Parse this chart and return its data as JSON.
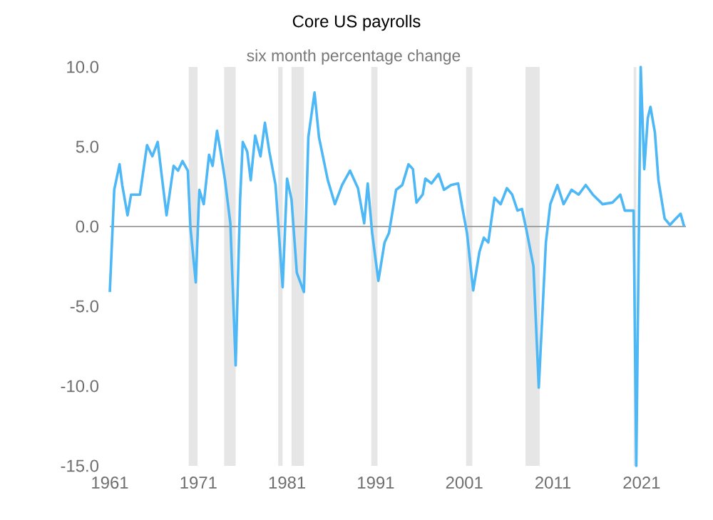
{
  "chart_data": {
    "type": "line",
    "title": "Core US payrolls",
    "subtitle": "six month percentage change",
    "xlim": [
      1961,
      2026
    ],
    "ylim": [
      -15,
      10
    ],
    "xticks": [
      1961,
      1971,
      1981,
      1991,
      2001,
      2011,
      2021
    ],
    "yticks": [
      {
        "value": -15,
        "label": "-15.0"
      },
      {
        "value": -10,
        "label": "-10.0"
      },
      {
        "value": -5,
        "label": "-5.0"
      },
      {
        "value": 0,
        "label": "0.0"
      },
      {
        "value": 5,
        "label": "5.0"
      },
      {
        "value": 10,
        "label": "10.0"
      }
    ],
    "ref_lines": [
      {
        "axis": "y",
        "value": 0,
        "color": "#888888"
      }
    ],
    "bands": [
      {
        "axis": "x",
        "from": 1969.9,
        "to": 1970.9,
        "color": "#e6e6e6"
      },
      {
        "axis": "x",
        "from": 1973.9,
        "to": 1975.2,
        "color": "#e6e6e6"
      },
      {
        "axis": "x",
        "from": 1980.0,
        "to": 1980.5,
        "color": "#e6e6e6"
      },
      {
        "axis": "x",
        "from": 1981.5,
        "to": 1982.9,
        "color": "#e6e6e6"
      },
      {
        "axis": "x",
        "from": 1990.5,
        "to": 1991.2,
        "color": "#e6e6e6"
      },
      {
        "axis": "x",
        "from": 2001.2,
        "to": 2001.9,
        "color": "#e6e6e6"
      },
      {
        "axis": "x",
        "from": 2007.9,
        "to": 2009.5,
        "color": "#e6e6e6"
      },
      {
        "axis": "x",
        "from": 2020.1,
        "to": 2020.4,
        "color": "#e6e6e6"
      }
    ],
    "series": [
      {
        "color": "#4db8f5",
        "x": [
          1961.0,
          1961.5,
          1962.1,
          1962.4,
          1963.0,
          1963.4,
          1964.4,
          1965.2,
          1965.8,
          1966.4,
          1967.4,
          1968.2,
          1968.7,
          1969.2,
          1969.8,
          1970.1,
          1970.7,
          1971.1,
          1971.6,
          1972.2,
          1972.6,
          1973.1,
          1973.5,
          1974.0,
          1974.6,
          1975.2,
          1975.7,
          1976.0,
          1976.5,
          1976.9,
          1977.4,
          1978.0,
          1978.5,
          1979.0,
          1979.7,
          1980.5,
          1981.0,
          1981.5,
          1982.1,
          1982.9,
          1983.4,
          1984.1,
          1984.6,
          1985.6,
          1986.4,
          1987.2,
          1988.1,
          1989.0,
          1989.7,
          1990.1,
          1990.6,
          1991.3,
          1992.0,
          1992.5,
          1993.3,
          1994.0,
          1994.7,
          1995.2,
          1995.6,
          1996.3,
          1996.6,
          1997.3,
          1998.1,
          1998.7,
          1999.5,
          2000.3,
          2000.8,
          2001.3,
          2002.0,
          2002.7,
          2003.2,
          2003.7,
          2004.4,
          2005.1,
          2005.8,
          2006.4,
          2007.0,
          2007.5,
          2008.0,
          2008.8,
          2009.4,
          2010.2,
          2010.7,
          2011.5,
          2012.2,
          2013.1,
          2013.9,
          2014.7,
          2015.5,
          2016.6,
          2017.7,
          2018.6,
          2019.1,
          2020.1,
          2020.4,
          2020.9,
          2021.3,
          2021.7,
          2022.0,
          2022.5,
          2022.9,
          2023.6,
          2024.2,
          2024.7,
          2025.4,
          2025.8
        ],
        "values": [
          -4.1,
          2.3,
          3.9,
          2.6,
          0.7,
          2.0,
          2.0,
          5.1,
          4.4,
          5.3,
          0.7,
          3.8,
          3.5,
          4.1,
          3.5,
          -0.1,
          -3.5,
          2.3,
          1.4,
          4.5,
          3.8,
          6.0,
          4.7,
          2.9,
          0.2,
          -8.7,
          1.7,
          5.3,
          4.7,
          2.9,
          5.7,
          4.4,
          6.5,
          4.7,
          2.6,
          -3.8,
          3.0,
          1.7,
          -2.9,
          -4.1,
          5.6,
          8.4,
          5.6,
          2.9,
          1.4,
          2.6,
          3.5,
          2.4,
          0.2,
          2.7,
          -0.4,
          -3.4,
          -1.0,
          -0.4,
          2.3,
          2.6,
          3.9,
          3.6,
          1.5,
          2.0,
          3.0,
          2.7,
          3.3,
          2.3,
          2.6,
          2.7,
          1.1,
          -0.4,
          -4.0,
          -1.6,
          -0.7,
          -1.0,
          1.8,
          1.4,
          2.4,
          2.0,
          1.0,
          1.1,
          -0.2,
          -2.5,
          -10.1,
          -1.0,
          1.4,
          2.6,
          1.4,
          2.3,
          2.0,
          2.6,
          2.0,
          1.4,
          1.5,
          2.0,
          1.0,
          1.0,
          -15.0,
          10.0,
          3.6,
          6.8,
          7.5,
          5.9,
          2.9,
          0.5,
          0.1,
          0.4,
          0.8,
          0.0
        ]
      }
    ]
  }
}
